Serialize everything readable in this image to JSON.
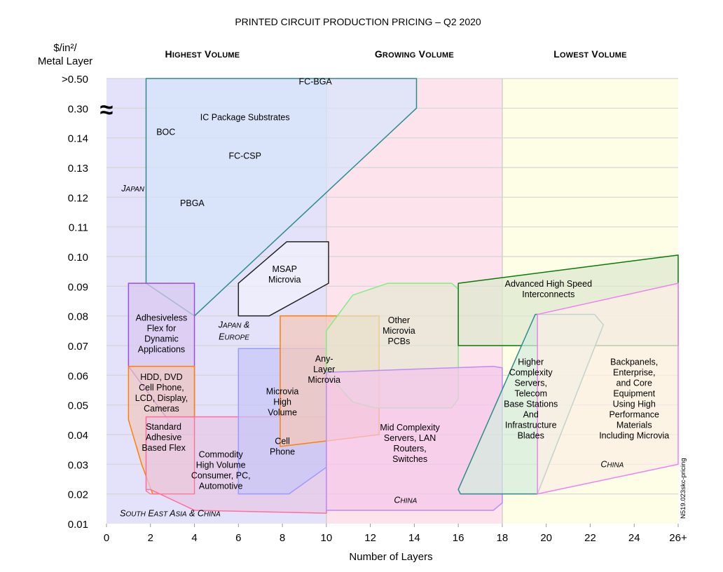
{
  "chart_data": {
    "type": "area",
    "title": "PRINTED CIRCUIT PRODUCTION PRICING – Q2 2020",
    "xlabel": "Number of Layers",
    "ylabel_lines": [
      "$/in²/",
      "Metal Layer"
    ],
    "x_ticks": [
      "0",
      "2",
      "4",
      "6",
      "8",
      "10",
      "12",
      "14",
      "16",
      "18",
      "20",
      "22",
      "24",
      "26+"
    ],
    "xlim": [
      0,
      26
    ],
    "y_ticks": [
      "0.01",
      "0.02",
      "0.03",
      "0.04",
      "0.05",
      "0.06",
      "0.07",
      "0.08",
      "0.09",
      "0.10",
      "0.11",
      "0.12",
      "0.13",
      "0.14",
      "0.30",
      ">0.50"
    ],
    "y_scale_note": "categorical (axis break between 0.14 and 0.30)",
    "axis_break_symbol": "≈",
    "grid": true,
    "zones": [
      {
        "name": "Highest Volume",
        "x_range": [
          0,
          10
        ],
        "color": "#e3e2fa"
      },
      {
        "name": "Growing Volume",
        "x_range": [
          10,
          18
        ],
        "color": "#fde4ec"
      },
      {
        "name": "Lowest Volume",
        "x_range": [
          18,
          26
        ],
        "color": "#fefee6"
      }
    ],
    "regions": [
      {
        "id": "ic-substrates",
        "label": [
          "IC Package Substrates"
        ],
        "fill": "#d6e4fb",
        "stroke": "#2e8b8b",
        "points": [
          [
            1.8,
            15
          ],
          [
            14.1,
            15
          ],
          [
            14.1,
            14
          ],
          [
            4,
            7
          ],
          [
            1.8,
            8.1
          ]
        ],
        "sub_labels": [
          {
            "text": "FC-BGA",
            "at": [
              9.5,
              14.8
            ]
          },
          {
            "text": "BOC",
            "at": [
              2.7,
              13.1
            ]
          },
          {
            "text": "FC-CSP",
            "at": [
              6.3,
              12.3
            ]
          },
          {
            "text": "PBGA",
            "at": [
              3.9,
              10.7
            ]
          },
          {
            "text": "IC Package Substrates",
            "at": [
              6.3,
              13.6
            ]
          }
        ]
      },
      {
        "id": "msap",
        "label": [
          "MSAP",
          "Microvia"
        ],
        "fill": "#f1f1fc",
        "stroke": "#222222",
        "points": [
          [
            8.2,
            9.5
          ],
          [
            10.1,
            9.5
          ],
          [
            10.1,
            8.1
          ],
          [
            7.4,
            7
          ],
          [
            6,
            7
          ],
          [
            6,
            8.1
          ]
        ],
        "label_at": [
          8.1,
          8.4
        ]
      },
      {
        "id": "adhesiveless-flex",
        "label": [
          "Adhesiveless",
          "Flex for",
          "Dynamic",
          "Applications"
        ],
        "fill": "#d9c8f0",
        "stroke": "#9b4de0",
        "points": [
          [
            1,
            8.1
          ],
          [
            4,
            8.1
          ],
          [
            4,
            3
          ],
          [
            3.3,
            3
          ],
          [
            1,
            5.3
          ]
        ],
        "label_at": [
          2.5,
          6.4
        ]
      },
      {
        "id": "hdd-dvd",
        "label": [
          "HDD, DVD",
          "Cell Phone,",
          "LCD, Display,",
          "Cameras"
        ],
        "fill": "#efc8c0",
        "stroke": "#ff8000",
        "points": [
          [
            1,
            5.3
          ],
          [
            4,
            5.3
          ],
          [
            4,
            1
          ],
          [
            2.1,
            1
          ],
          [
            1.6,
            2
          ],
          [
            1,
            3.5
          ]
        ],
        "label_at": [
          2.5,
          4.4
        ]
      },
      {
        "id": "std-adhesive-flex",
        "label": [
          "Standard",
          "Adhesive",
          "Based Flex"
        ],
        "fill": "#efc8c8",
        "stroke": "#ff6f9c",
        "label_at": [
          2.6,
          2.9
        ]
      },
      {
        "id": "commodity",
        "label": [
          "Commodity",
          "High Volume",
          "Consumer, PC,",
          "Automotive"
        ],
        "fill": "#e8c8e4",
        "stroke": "#ff6f9c",
        "points": [
          [
            1.8,
            3.6
          ],
          [
            10,
            3.6
          ],
          [
            10,
            0.35
          ],
          [
            4,
            0.45
          ],
          [
            2,
            1.15
          ],
          [
            1.8,
            1.15
          ]
        ],
        "label_at": [
          5.2,
          1.8
        ]
      },
      {
        "id": "microvia-high-volume",
        "label": [
          "Microvia",
          "High",
          "Volume"
        ],
        "fill": "#c6c6f6",
        "stroke": "#9a9aff",
        "points": [
          [
            6,
            5.9
          ],
          [
            10,
            5.9
          ],
          [
            10,
            1.9
          ],
          [
            8.3,
            1
          ],
          [
            6,
            1
          ]
        ],
        "label_at": [
          8,
          4.1
        ]
      },
      {
        "id": "cell-phone",
        "label": [
          "Cell",
          "Phone"
        ],
        "fill": "none",
        "stroke": "none",
        "label_at": [
          8,
          2.6
        ]
      },
      {
        "id": "any-layer",
        "label": [
          "Any-",
          "Layer",
          "Microvia"
        ],
        "fill": "#f4c8b8",
        "stroke": "#ff8000",
        "points": [
          [
            7.9,
            7
          ],
          [
            12.4,
            7
          ],
          [
            12.4,
            3
          ],
          [
            7.9,
            2.6
          ]
        ],
        "label_at": [
          9.9,
          5.2
        ]
      },
      {
        "id": "other-microvia",
        "label": [
          "Other",
          "Microvia",
          "PCBs"
        ],
        "fill": "#e4e8d2",
        "stroke": "#80ee80",
        "points": [
          [
            10,
            6.5
          ],
          [
            11.2,
            7.7
          ],
          [
            12.8,
            8.1
          ],
          [
            15.7,
            8.1
          ],
          [
            16,
            7.9
          ],
          [
            16,
            4.2
          ],
          [
            15.7,
            3.9
          ],
          [
            12.2,
            3.9
          ],
          [
            11.2,
            4.1
          ],
          [
            10,
            5.1
          ]
        ],
        "label_at": [
          13.3,
          6.5
        ]
      },
      {
        "id": "mid-complexity",
        "label": [
          "Mid Complexity",
          "Servers, LAN",
          "Routers,",
          "Switches"
        ],
        "fill": "#f4c6ea",
        "stroke": "#b98ff0",
        "points": [
          [
            10,
            5.1
          ],
          [
            17.6,
            5.3
          ],
          [
            18,
            5.25
          ],
          [
            18,
            0.7
          ],
          [
            17.6,
            0.45
          ],
          [
            10,
            0.45
          ]
        ],
        "label_at": [
          13.8,
          2.7
        ]
      },
      {
        "id": "advanced-high-speed",
        "label": [
          "Advanced High Speed",
          "Interconnects"
        ],
        "fill": "#dde8cf",
        "stroke": "#0a7a0a",
        "points": [
          [
            16,
            8.1
          ],
          [
            26,
            9.05
          ],
          [
            26,
            6
          ],
          [
            16,
            6
          ]
        ],
        "label_at": [
          20.1,
          7.9
        ]
      },
      {
        "id": "higher-complexity",
        "label": [
          "Higher",
          "Complexity",
          "Servers,",
          "Telecom",
          "Base Stations",
          "And",
          "Infrastructure",
          "Blades"
        ],
        "fill": "#d4ecde",
        "stroke": "#2e8b8b",
        "points": [
          [
            19.5,
            7.05
          ],
          [
            22.2,
            7.05
          ],
          [
            22.6,
            6.7
          ],
          [
            19.6,
            1
          ],
          [
            16.1,
            1
          ],
          [
            16,
            1.15
          ]
        ],
        "label_at": [
          19.3,
          4.2
        ]
      },
      {
        "id": "backpanels",
        "label": [
          "Backpanels,",
          "Enterprise,",
          "and Core",
          "Equipment",
          "Using High",
          "Performance",
          "Materials",
          "Including Microvia"
        ],
        "fill": "#fcefe4",
        "stroke": "#ee82ee",
        "points": [
          [
            19.6,
            7.05
          ],
          [
            26,
            8.1
          ],
          [
            26,
            2.0
          ],
          [
            19.6,
            1
          ],
          [
            19.6,
            1
          ]
        ],
        "label_at": [
          24,
          4.2
        ]
      }
    ],
    "region_annotations": [
      {
        "text": "Japan",
        "at": [
          1.2,
          11.2
        ]
      },
      {
        "text": "Japan &",
        "at": [
          5.8,
          6.6
        ]
      },
      {
        "text": "Europe",
        "at": [
          5.8,
          6.2
        ]
      },
      {
        "text": "South East Asia & China",
        "at": [
          2.9,
          0.25
        ]
      },
      {
        "text": "China",
        "at": [
          13.6,
          0.7
        ]
      },
      {
        "text": "China",
        "at": [
          23,
          1.9
        ]
      }
    ],
    "watermark": "N519.023skc-pricing"
  }
}
